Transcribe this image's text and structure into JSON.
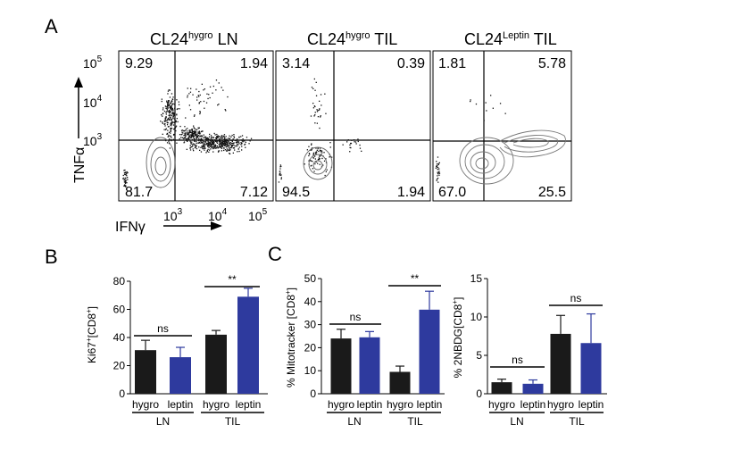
{
  "panel_labels": [
    "A",
    "B",
    "C"
  ],
  "flow_plots": [
    {
      "title_main": "CL24",
      "title_sup": "hygro",
      "title_rest": " LN",
      "quadrants": {
        "ul": "9.29",
        "ur": "1.94",
        "ll": "81.7",
        "lr": "7.12"
      }
    },
    {
      "title_main": "CL24",
      "title_sup": "hygro",
      "title_rest": " TIL",
      "quadrants": {
        "ul": "3.14",
        "ur": "0.39",
        "ll": "94.5",
        "lr": "1.94"
      }
    },
    {
      "title_main": "CL24",
      "title_sup": "Leptin",
      "title_rest": "  TIL",
      "quadrants": {
        "ul": "1.81",
        "ur": "5.78",
        "ll": "67.0",
        "lr": "25.5"
      }
    }
  ],
  "flow_axes": {
    "y_label": "TNFα",
    "x_label": "IFNγ",
    "y_ticks": [
      {
        "base": "10",
        "exp": "5"
      },
      {
        "base": "10",
        "exp": "4"
      },
      {
        "base": "10",
        "exp": "3"
      }
    ],
    "x_ticks": [
      {
        "base": "10",
        "exp": "3"
      },
      {
        "base": "10",
        "exp": "4"
      },
      {
        "base": "10",
        "exp": "5"
      }
    ]
  },
  "colors": {
    "hygro": "#1a1a1a",
    "leptin": "#2e3a9e"
  },
  "chart_data": [
    {
      "type": "bar",
      "panel": "B",
      "ylabel_main": "Ki67",
      "ylabel_sup": "+",
      "ylabel_rest": "[CD8",
      "ylabel_sup2": "+",
      "ylabel_end": "]",
      "ylim": [
        0,
        80
      ],
      "yticks": [
        "0",
        "20",
        "40",
        "60",
        "80"
      ],
      "categories": [
        "hygro",
        "leptin",
        "hygro",
        "leptin"
      ],
      "groups": [
        "LN",
        "TIL"
      ],
      "values": [
        31,
        26,
        42,
        69
      ],
      "errors": [
        7,
        7,
        3,
        6
      ],
      "significance": [
        "ns",
        "**"
      ]
    },
    {
      "type": "bar",
      "panel": "C",
      "ylabel_main": "% Mitotracker [CD8",
      "ylabel_sup": "+",
      "ylabel_end": "]",
      "ylim": [
        0,
        50
      ],
      "yticks": [
        "0",
        "10",
        "20",
        "30",
        "40",
        "50"
      ],
      "categories": [
        "hygro",
        "leptin",
        "hygro",
        "leptin"
      ],
      "groups": [
        "LN",
        "TIL"
      ],
      "values": [
        24,
        24.5,
        9.5,
        36.5
      ],
      "errors": [
        4,
        2.5,
        2.5,
        8
      ],
      "significance": [
        "ns",
        "**"
      ]
    },
    {
      "type": "bar",
      "panel": "C",
      "ylabel_main": "% 2NBDG[CD8",
      "ylabel_sup": "+",
      "ylabel_end": "]",
      "ylim": [
        0,
        15
      ],
      "yticks": [
        "0",
        "5",
        "10",
        "15"
      ],
      "categories": [
        "hygro",
        "leptin",
        "hygro",
        "leptin"
      ],
      "groups": [
        "LN",
        "TIL"
      ],
      "values": [
        1.5,
        1.3,
        7.8,
        6.6
      ],
      "errors": [
        0.4,
        0.5,
        2.4,
        3.8
      ],
      "significance": [
        "ns",
        "ns"
      ]
    }
  ]
}
